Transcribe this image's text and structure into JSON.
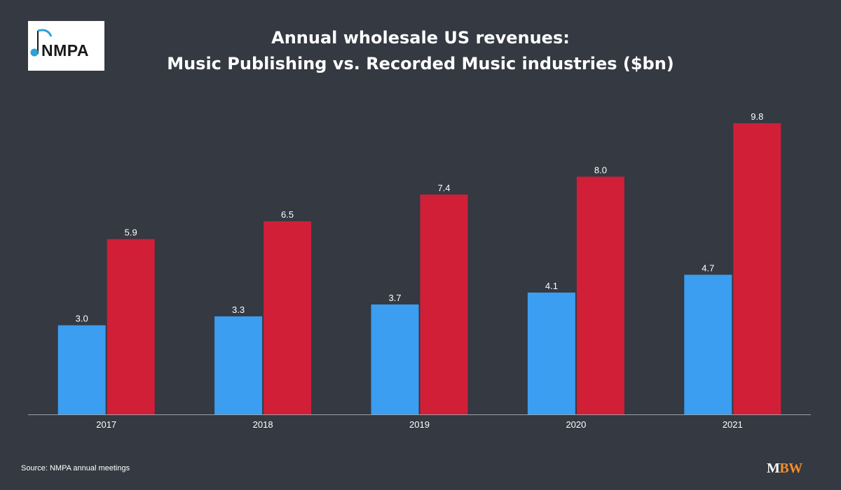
{
  "logo": {
    "text": "NMPA"
  },
  "header": {
    "title_line1": "Annual wholesale US revenues:",
    "title_line2": "Music Publishing vs. Recorded Music industries ($bn)"
  },
  "chart_data": {
    "type": "bar",
    "categories": [
      "2017",
      "2018",
      "2019",
      "2020",
      "2021"
    ],
    "series": [
      {
        "values": [
          3.0,
          3.3,
          3.7,
          4.1,
          4.7
        ],
        "color": "#3b9ef0"
      },
      {
        "values": [
          5.9,
          6.5,
          7.4,
          8.0,
          9.8
        ],
        "color": "#d11f38"
      }
    ],
    "ylim": [
      0,
      9.8
    ],
    "grid": false,
    "legend": "none",
    "data_labels": true
  },
  "footer": {
    "source": "Source: NMPA annual meetings",
    "brand_m": "M",
    "brand_bw": "BW"
  }
}
